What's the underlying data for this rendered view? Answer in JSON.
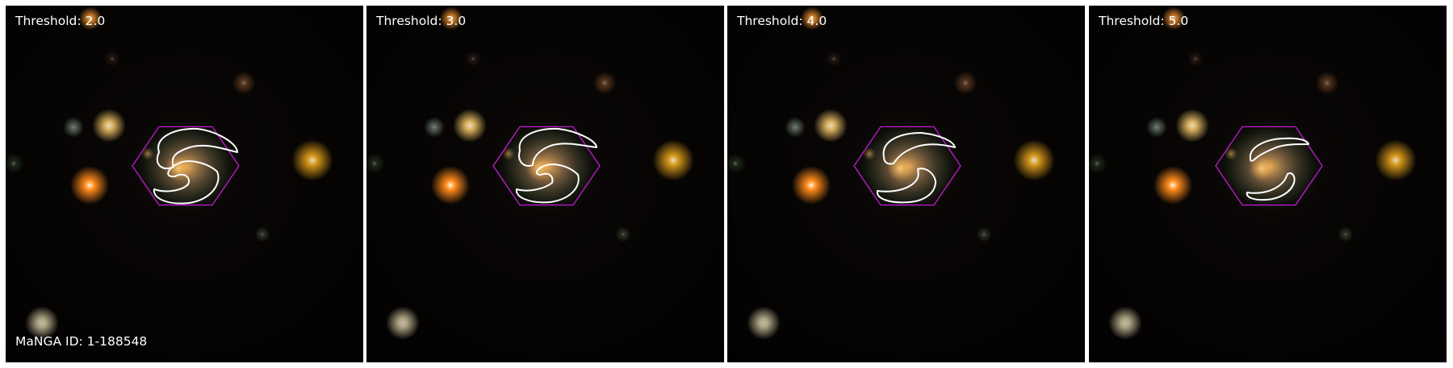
{
  "panels": [
    {
      "label": "Threshold: 2.0",
      "contour_stage": 0
    },
    {
      "label": "Threshold: 3.0",
      "contour_stage": 1
    },
    {
      "label": "Threshold: 4.0",
      "contour_stage": 2
    },
    {
      "label": "Threshold: 5.0",
      "contour_stage": 3
    }
  ],
  "galaxy_id_label": "MaNGA ID: 1-188548",
  "colors": {
    "background": "#020101",
    "hexagon": "#c21bd4",
    "contour": "#ffffff",
    "separator": "#ffffff"
  },
  "icons": [
    "galaxy-field",
    "ifu-hexagon",
    "threshold-contour"
  ]
}
